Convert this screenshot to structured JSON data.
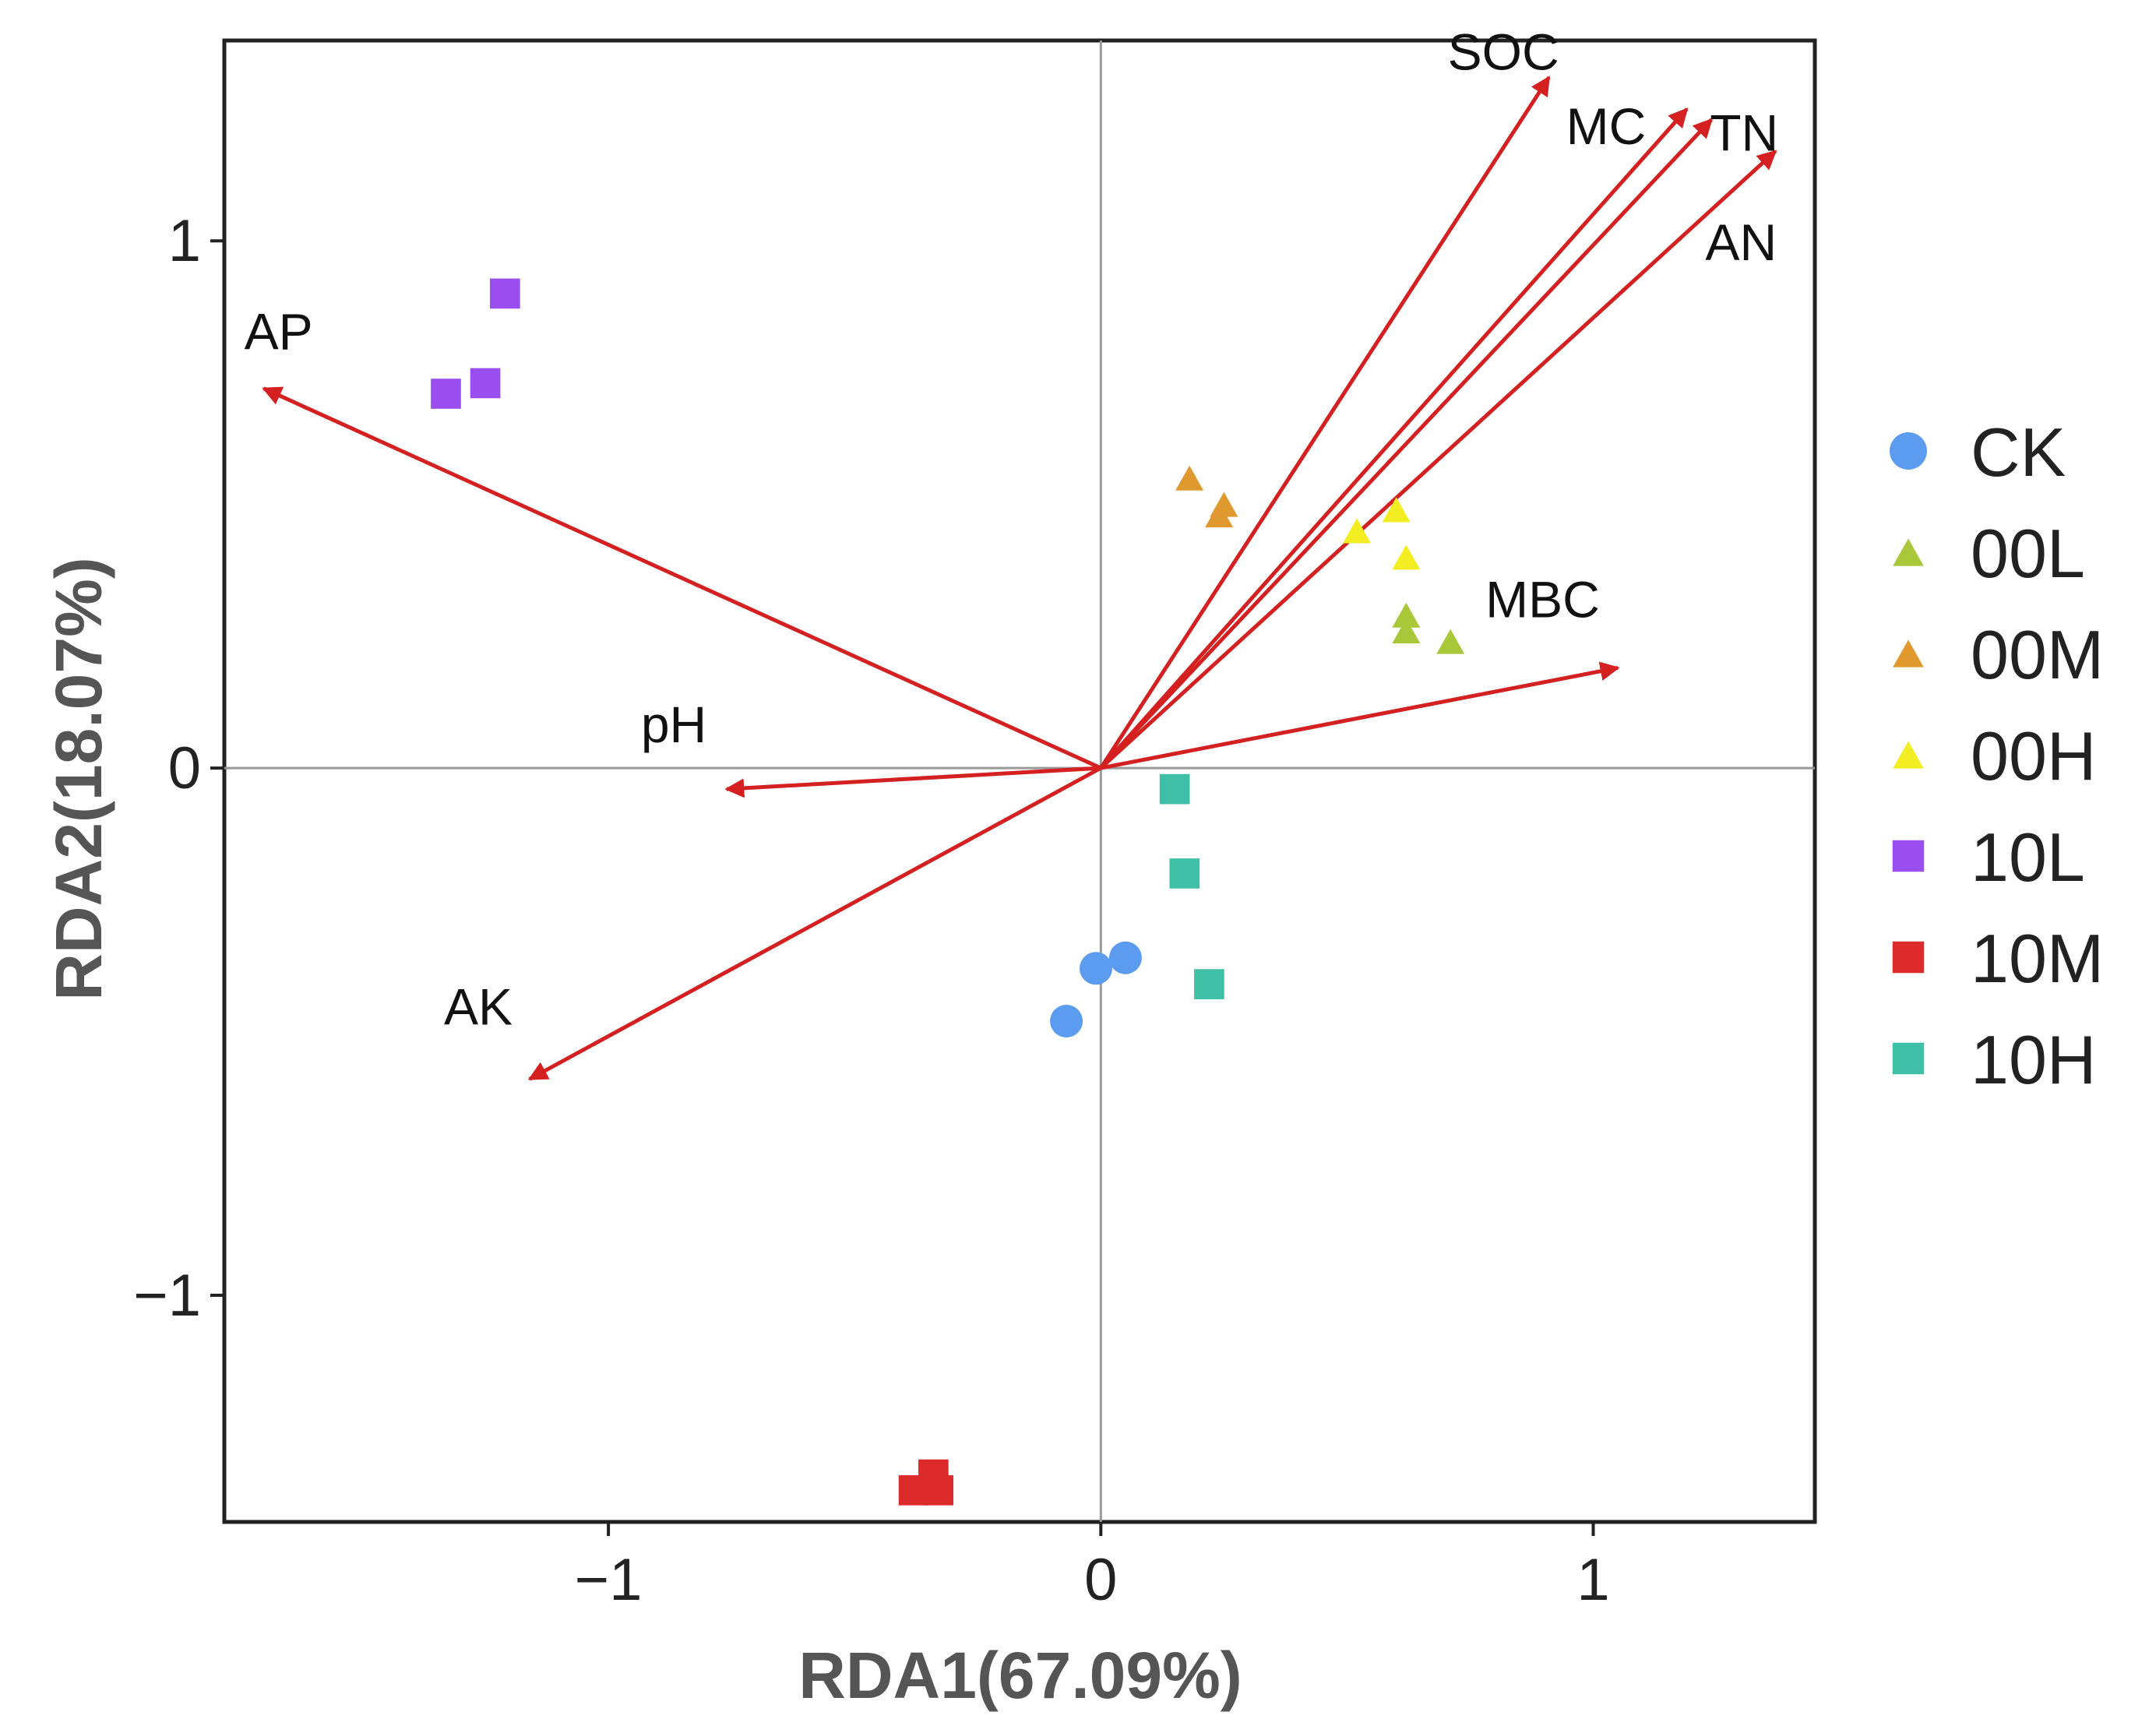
{
  "chart_data": {
    "type": "scatter",
    "title": "",
    "xlabel": "RDA1(67.09%)",
    "ylabel": "RDA2(18.07%)",
    "xlim": [
      -1.78,
      1.45
    ],
    "ylim": [
      -1.43,
      1.38
    ],
    "xticks": [
      -1,
      0,
      1
    ],
    "yticks": [
      -1,
      0,
      1
    ],
    "xtick_labels": [
      "−1",
      "0",
      "1"
    ],
    "ytick_labels": [
      "−1",
      "0",
      "1"
    ],
    "zero_lines": true,
    "legend_position": "right",
    "series": [
      {
        "name": "CK",
        "marker": "circle",
        "color": "#5b9bf0",
        "points": [
          [
            0.05,
            -0.36
          ],
          [
            -0.01,
            -0.38
          ],
          [
            -0.07,
            -0.48
          ]
        ]
      },
      {
        "name": "00L",
        "marker": "triangle",
        "color": "#a8c83a",
        "points": [
          [
            0.62,
            0.29
          ],
          [
            0.62,
            0.26
          ],
          [
            0.71,
            0.24
          ]
        ]
      },
      {
        "name": "00M",
        "marker": "triangle",
        "color": "#e0992f",
        "points": [
          [
            0.18,
            0.55
          ],
          [
            0.25,
            0.5
          ],
          [
            0.24,
            0.48
          ]
        ]
      },
      {
        "name": "00H",
        "marker": "triangle",
        "color": "#f2ee23",
        "points": [
          [
            0.52,
            0.45
          ],
          [
            0.6,
            0.49
          ],
          [
            0.62,
            0.4
          ]
        ]
      },
      {
        "name": "10L",
        "marker": "square",
        "color": "#9a4ef0",
        "points": [
          [
            -1.21,
            0.9
          ],
          [
            -1.25,
            0.73
          ],
          [
            -1.33,
            0.71
          ]
        ]
      },
      {
        "name": "10M",
        "marker": "square",
        "color": "#dd2b2b",
        "points": [
          [
            -0.34,
            -1.34
          ],
          [
            -0.38,
            -1.37
          ],
          [
            -0.33,
            -1.37
          ]
        ]
      },
      {
        "name": "10H",
        "marker": "square",
        "color": "#3fbfa6",
        "points": [
          [
            0.15,
            -0.04
          ],
          [
            0.17,
            -0.2
          ],
          [
            0.22,
            -0.41
          ]
        ]
      }
    ],
    "arrows": [
      {
        "name": "SOC",
        "x": 0.91,
        "y": 1.31
      },
      {
        "name": "MC",
        "x": 1.19,
        "y": 1.25
      },
      {
        "name": "TN",
        "x": 1.24,
        "y": 1.23
      },
      {
        "name": "AN",
        "x": 1.37,
        "y": 1.17
      },
      {
        "name": "MBC",
        "x": 1.05,
        "y": 0.19
      },
      {
        "name": "AP",
        "x": -1.7,
        "y": 0.72
      },
      {
        "name": "pH",
        "x": -0.76,
        "y": -0.04
      },
      {
        "name": "AK",
        "x": -1.16,
        "y": -0.59
      }
    ],
    "arrow_color": "#d42020"
  }
}
